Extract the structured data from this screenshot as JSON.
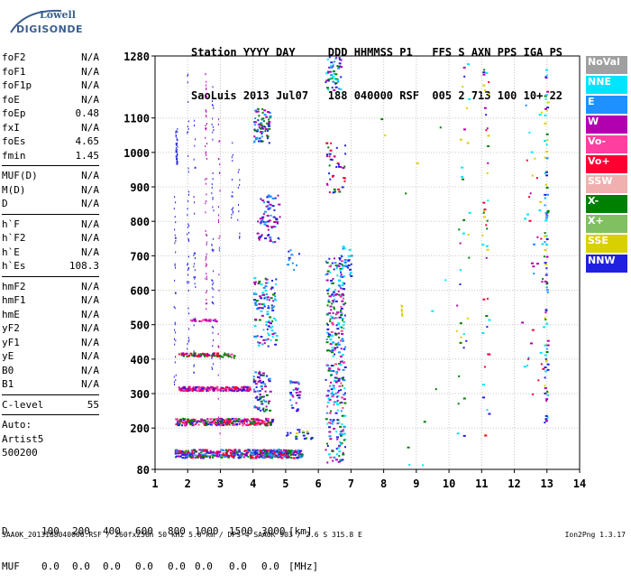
{
  "logo": {
    "line1": "Lowell",
    "line2": "DIGISONDE"
  },
  "header": {
    "row1": [
      "Station",
      "YYYY",
      "DAY",
      "DDD",
      "HHMMSS",
      "P1",
      "FFS",
      "S",
      "AXN",
      "PPS",
      "IGA",
      "PS"
    ],
    "row2": [
      "SaoLuis",
      "2013",
      "Jul07",
      "188",
      "040000",
      "RSF",
      "005",
      "2",
      "713",
      "100",
      "10+",
      "22"
    ]
  },
  "params": {
    "group1": [
      {
        "label": "foF2",
        "value": "N/A"
      },
      {
        "label": "foF1",
        "value": "N/A"
      },
      {
        "label": "foF1p",
        "value": "N/A"
      },
      {
        "label": "foE",
        "value": "N/A"
      },
      {
        "label": "foEp",
        "value": "0.48"
      },
      {
        "label": "fxI",
        "value": "N/A"
      },
      {
        "label": "foEs",
        "value": "4.65"
      },
      {
        "label": "fmin",
        "value": "1.45"
      }
    ],
    "group2": [
      {
        "label": "MUF(D)",
        "value": "N/A"
      },
      {
        "label": "M(D)",
        "value": "N/A"
      },
      {
        "label": "D",
        "value": "N/A"
      }
    ],
    "group3": [
      {
        "label": "h`F",
        "value": "N/A"
      },
      {
        "label": "h`F2",
        "value": "N/A"
      },
      {
        "label": "h`E",
        "value": "N/A"
      },
      {
        "label": "h`Es",
        "value": "108.3"
      }
    ],
    "group4": [
      {
        "label": "hmF2",
        "value": "N/A"
      },
      {
        "label": "hmF1",
        "value": "N/A"
      },
      {
        "label": "hmE",
        "value": "N/A"
      },
      {
        "label": "yF2",
        "value": "N/A"
      },
      {
        "label": "yF1",
        "value": "N/A"
      },
      {
        "label": "yE",
        "value": "N/A"
      },
      {
        "label": "B0",
        "value": "N/A"
      },
      {
        "label": "B1",
        "value": "N/A"
      }
    ],
    "group5": [
      {
        "label": "C-level",
        "value": "55"
      }
    ],
    "auto": [
      "Auto:",
      "Artist5",
      "500200"
    ]
  },
  "legend": [
    {
      "label": "NoVal",
      "color": "#a0a0a0"
    },
    {
      "label": "NNE",
      "color": "#00e5ff"
    },
    {
      "label": "E",
      "color": "#1e90ff"
    },
    {
      "label": "W",
      "color": "#b000b0"
    },
    {
      "label": "Vo-",
      "color": "#ff3fa0"
    },
    {
      "label": "Vo+",
      "color": "#ff0033"
    },
    {
      "label": "SSW",
      "color": "#f0b0b0"
    },
    {
      "label": "X-",
      "color": "#008000"
    },
    {
      "label": "X+",
      "color": "#80c060"
    },
    {
      "label": "SSE",
      "color": "#d8d000"
    },
    {
      "label": "NNW",
      "color": "#2020e0"
    }
  ],
  "bottom": {
    "d_label": "D",
    "d_values": [
      "100",
      "200",
      "400",
      "600",
      "800",
      "1000",
      "1500",
      "3000"
    ],
    "d_unit": "[km]",
    "muf_label": "MUF",
    "muf_values": [
      "0.0",
      "0.0",
      "0.0",
      "0.0",
      "0.0",
      "0.0",
      "0.0",
      "0.0"
    ],
    "muf_unit": "[MHz]"
  },
  "footer": {
    "left": "SAA0K_2013188040000.RSF / 260fx256h 50 kHz 5.0 km / DPS-4 SAA0K 903 / 2.6 S 315.8 E",
    "right": "Ion2Png 1.3.17"
  },
  "chart_data": {
    "type": "scatter",
    "xlim": [
      1,
      14
    ],
    "ylim": [
      80,
      1280
    ],
    "xticks": [
      1,
      2,
      3,
      4,
      5,
      6,
      7,
      8,
      9,
      10,
      11,
      12,
      13,
      14
    ],
    "yticks": [
      80,
      200,
      300,
      400,
      500,
      600,
      700,
      800,
      900,
      1000,
      1100,
      1280
    ],
    "grid": true,
    "clusters": [
      {
        "x": [
          1.6,
          5.5
        ],
        "y": [
          115,
          140
        ],
        "colors": [
          "NNW",
          "X-",
          "W",
          "E",
          "Vo+"
        ],
        "density": 420
      },
      {
        "x": [
          1.6,
          4.6
        ],
        "y": [
          210,
          230
        ],
        "colors": [
          "Vo+",
          "W",
          "NNW",
          "X-",
          "Vo-"
        ],
        "density": 260
      },
      {
        "x": [
          1.7,
          3.9
        ],
        "y": [
          310,
          322
        ],
        "colors": [
          "Vo+",
          "W",
          "Vo-",
          "NNW"
        ],
        "density": 180
      },
      {
        "x": [
          1.7,
          3.0
        ],
        "y": [
          410,
          420
        ],
        "colors": [
          "Vo+",
          "W",
          "X-"
        ],
        "density": 60
      },
      {
        "x": [
          3.0,
          3.5
        ],
        "y": [
          405,
          420
        ],
        "colors": [
          "Vo-",
          "X-"
        ],
        "density": 15
      },
      {
        "x": [
          2.0,
          2.9
        ],
        "y": [
          512,
          518
        ],
        "colors": [
          "Vo-",
          "W"
        ],
        "density": 25
      },
      {
        "x": [
          4.0,
          4.5
        ],
        "y": [
          250,
          370
        ],
        "colors": [
          "NNW",
          "W",
          "E",
          "X-"
        ],
        "density": 70
      },
      {
        "x": [
          4.0,
          4.7
        ],
        "y": [
          440,
          640
        ],
        "colors": [
          "NNW",
          "W",
          "E",
          "X-",
          "NNE"
        ],
        "density": 110
      },
      {
        "x": [
          4.1,
          4.8
        ],
        "y": [
          740,
          880
        ],
        "colors": [
          "NNW",
          "W",
          "E"
        ],
        "density": 70
      },
      {
        "x": [
          4.0,
          4.5
        ],
        "y": [
          1030,
          1130
        ],
        "colors": [
          "NNW",
          "W",
          "E",
          "X-"
        ],
        "density": 70
      },
      {
        "x": [
          5.1,
          5.4
        ],
        "y": [
          250,
          340
        ],
        "colors": [
          "NNW",
          "W",
          "E"
        ],
        "density": 30
      },
      {
        "x": [
          6.2,
          6.8
        ],
        "y": [
          100,
          700
        ],
        "colors": [
          "NNW",
          "W",
          "E",
          "NNE",
          "X-",
          "Vo-"
        ],
        "density": 320
      },
      {
        "x": [
          6.2,
          6.7
        ],
        "y": [
          1180,
          1280
        ],
        "colors": [
          "NNW",
          "X-",
          "W",
          "NNE",
          "E"
        ],
        "density": 50
      },
      {
        "x": [
          6.2,
          6.8
        ],
        "y": [
          880,
          1030
        ],
        "colors": [
          "NNW",
          "Vo+",
          "W",
          "X-"
        ],
        "density": 40
      },
      {
        "x": [
          6.6,
          7.0
        ],
        "y": [
          640,
          740
        ],
        "colors": [
          "NNW",
          "E",
          "NNE"
        ],
        "density": 30
      },
      {
        "x": [
          5.0,
          5.4
        ],
        "y": [
          650,
          720
        ],
        "colors": [
          "NNW",
          "E"
        ],
        "density": 10
      },
      {
        "x": [
          5.0,
          5.9
        ],
        "y": [
          170,
          200
        ],
        "colors": [
          "SSE",
          "NNW",
          "X-"
        ],
        "density": 20
      },
      {
        "x": [
          12.9,
          13.0
        ],
        "y": [
          200,
          1250
        ],
        "colors": [
          "NNE",
          "X-",
          "SSE",
          "NNW",
          "W",
          "E"
        ],
        "density": 90
      },
      {
        "x": [
          11.0,
          11.2
        ],
        "y": [
          180,
          1260
        ],
        "colors": [
          "X-",
          "W",
          "NNW",
          "SSE",
          "NNE",
          "Vo+"
        ],
        "density": 45
      },
      {
        "x": [
          10.2,
          10.6
        ],
        "y": [
          170,
          1260
        ],
        "colors": [
          "X-",
          "SSE",
          "NNE",
          "W",
          "NNW"
        ],
        "density": 35
      },
      {
        "x": [
          12.2,
          12.9
        ],
        "y": [
          300,
          1240
        ],
        "colors": [
          "Vo+",
          "X-",
          "SSE",
          "W",
          "E",
          "NNE"
        ],
        "density": 40
      },
      {
        "x": [
          7.8,
          10.0
        ],
        "y": [
          90,
          1270
        ],
        "colors": [
          "X-",
          "SSE",
          "NNE"
        ],
        "density": 12
      }
    ],
    "traces": [
      {
        "x": 1.65,
        "y": [
          960,
          1080
        ],
        "color": "NNW",
        "density": 40
      },
      {
        "x": 1.6,
        "y": [
          320,
          880
        ],
        "color": "NNW",
        "density": 35
      },
      {
        "x": 2.0,
        "y": [
          420,
          1240
        ],
        "color": "NNW",
        "density": 45
      },
      {
        "x": 2.2,
        "y": [
          330,
          1100
        ],
        "color": "NNW",
        "density": 30
      },
      {
        "x": 2.55,
        "y": [
          530,
          1240
        ],
        "color": "W",
        "density": 55
      },
      {
        "x": 2.75,
        "y": [
          300,
          1200
        ],
        "color": "NNW",
        "density": 50
      },
      {
        "x": 2.95,
        "y": [
          150,
          1100
        ],
        "color": "W",
        "density": 30
      },
      {
        "x": 3.35,
        "y": [
          780,
          1050
        ],
        "color": "NNW",
        "density": 15
      },
      {
        "x": 3.55,
        "y": [
          750,
          960
        ],
        "color": "NNW",
        "density": 12
      },
      {
        "x": 8.55,
        "y": [
          520,
          560
        ],
        "color": "SSE",
        "density": 15
      }
    ]
  }
}
